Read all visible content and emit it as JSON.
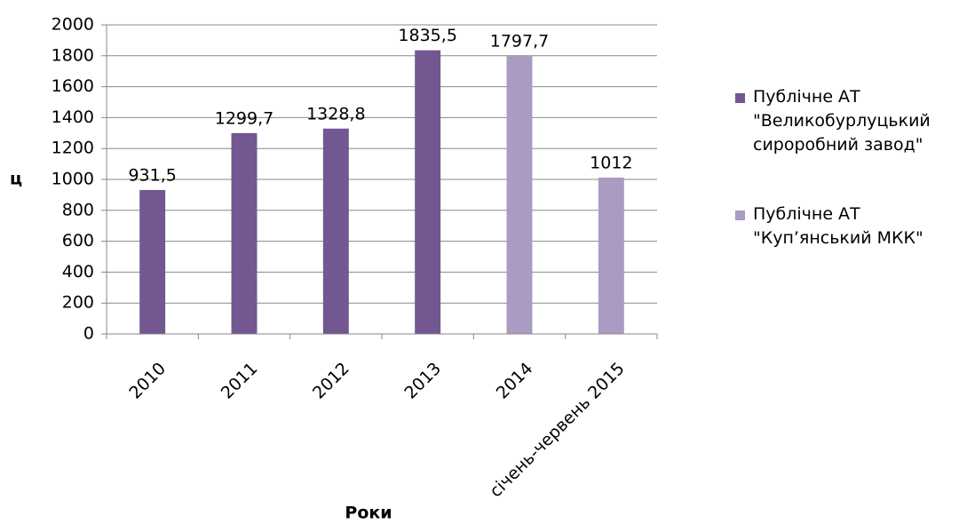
{
  "chart_data": {
    "type": "bar",
    "y_label": "ц",
    "x_label": "Роки",
    "categories": [
      "2010",
      "2011",
      "2012",
      "2013",
      "2014",
      "січень-червень 2015"
    ],
    "series": [
      {
        "name": "Публічне АТ \"Великобурлуцький сироробний завод\"",
        "color": "#725791",
        "values": [
          931.5,
          1299.7,
          1328.8,
          1835.5,
          null,
          null
        ],
        "value_labels": [
          "931,5",
          "1299,7",
          "1328,8",
          "1835,5",
          null,
          null
        ]
      },
      {
        "name": "Публічне АТ \"Куп’янський МКК\"",
        "color": "#a99bc1",
        "values": [
          null,
          null,
          null,
          null,
          1797.7,
          1012
        ],
        "value_labels": [
          null,
          null,
          null,
          null,
          "1797,7",
          "1012"
        ]
      }
    ],
    "ylim": [
      0,
      2000
    ],
    "yticks": [
      0,
      200,
      400,
      600,
      800,
      1000,
      1200,
      1400,
      1600,
      1800,
      2000
    ],
    "grid": true,
    "legend": "right"
  }
}
